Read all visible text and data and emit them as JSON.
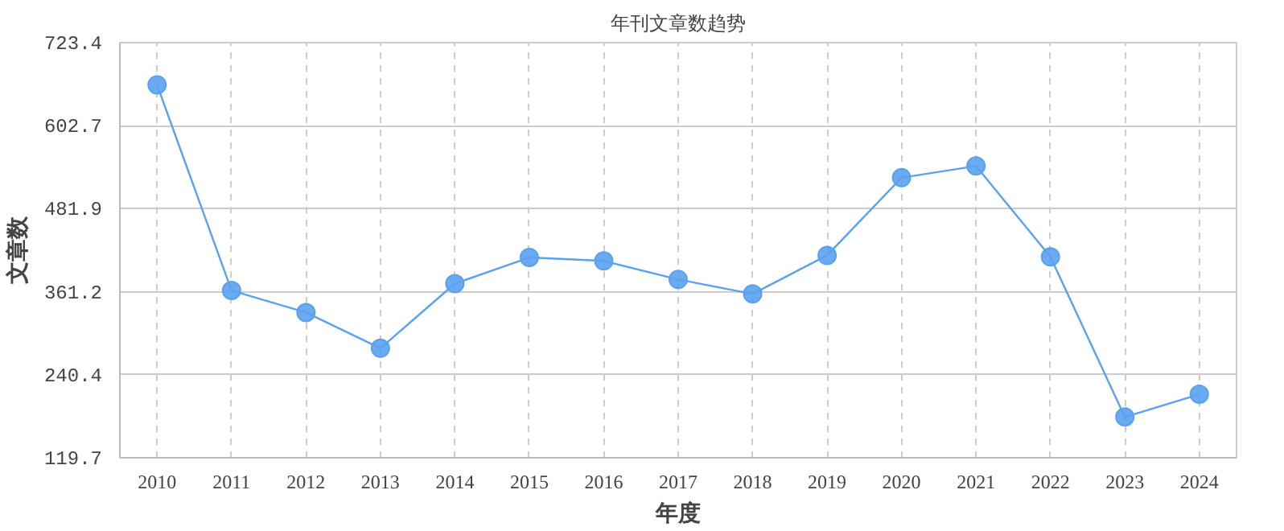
{
  "chart_data": {
    "type": "line",
    "title": "年刊文章数趋势",
    "xlabel": "年度",
    "ylabel": "文章数",
    "categories": [
      "2010",
      "2011",
      "2012",
      "2013",
      "2014",
      "2015",
      "2016",
      "2017",
      "2018",
      "2019",
      "2020",
      "2021",
      "2022",
      "2023",
      "2024"
    ],
    "series": [
      {
        "color": "#5aa2f0",
        "values": [
          662,
          363,
          331,
          279,
          373,
          411,
          406,
          379,
          358,
          414,
          527,
          544,
          412,
          179,
          212
        ]
      }
    ],
    "ylim": [
      119.7,
      723.4
    ],
    "yticks": [
      119.7,
      240.4,
      361.2,
      481.9,
      602.7,
      723.4
    ],
    "grid": true,
    "marker": "circle",
    "line_style": "solid"
  }
}
